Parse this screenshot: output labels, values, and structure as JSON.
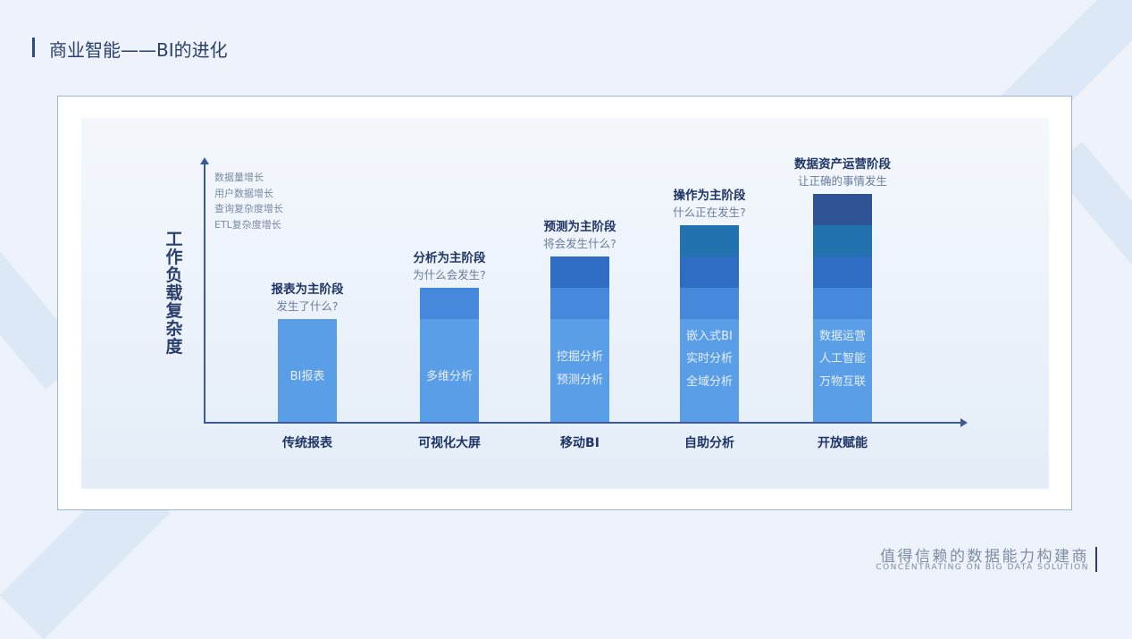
{
  "page": {
    "title": "商业智能——BI的进化"
  },
  "diagram": {
    "y_axis_label": "工作负载复杂度",
    "growth_notes": [
      "数据量增长",
      "用户数据增长",
      "查询复杂度增长",
      "ETL复杂度增长"
    ],
    "stages": [
      {
        "category": "传统报表",
        "title": "报表为主阶段",
        "subtitle": "发生了什么?",
        "bar_items": [
          "BI报表"
        ],
        "segments": 1
      },
      {
        "category": "可视化大屏",
        "title": "分析为主阶段",
        "subtitle": "为什么会发生?",
        "bar_items": [
          "多维分析"
        ],
        "segments": 2
      },
      {
        "category": "移动BI",
        "title": "预测为主阶段",
        "subtitle": "将会发生什么?",
        "bar_items": [
          "挖掘分析",
          "预测分析"
        ],
        "segments": 3
      },
      {
        "category": "自助分析",
        "title": "操作为主阶段",
        "subtitle": "什么正在发生?",
        "bar_items": [
          "嵌入式BI",
          "实时分析",
          "全域分析"
        ],
        "segments": 4
      },
      {
        "category": "开放赋能",
        "title": "数据资产运营阶段",
        "subtitle": "让正确的事情发生",
        "bar_items": [
          "数据运营",
          "人工智能",
          "万物互联"
        ],
        "segments": 5
      }
    ],
    "segment_colors": [
      "#5b9ee8",
      "#4689dc",
      "#2f6cc4",
      "#2272b0",
      "#2e5495"
    ]
  },
  "footer": {
    "tagline": "值得信赖的数据能力构建商",
    "tagline_en": "CONCENTRATING ON BIG DATA SOLUTION"
  }
}
